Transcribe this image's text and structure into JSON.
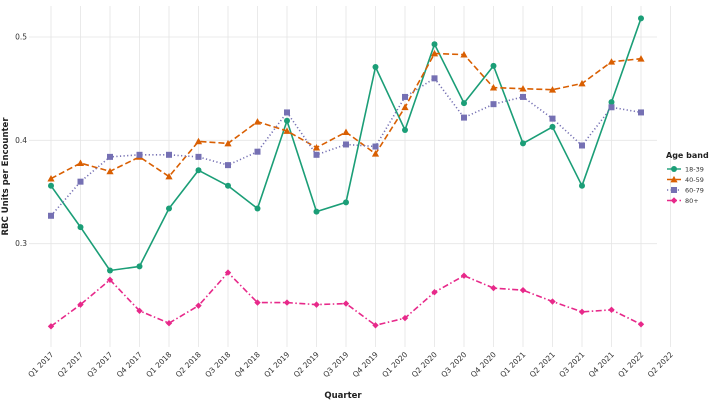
{
  "chart_data": {
    "type": "line",
    "title": "",
    "xlabel": "Quarter",
    "ylabel": "RBC Units per Encounter",
    "categories": [
      "Q1 2017",
      "Q2 2017",
      "Q3 2017",
      "Q4 2017",
      "Q1 2018",
      "Q2 2018",
      "Q3 2018",
      "Q4 2018",
      "Q1 2019",
      "Q2 2019",
      "Q3 2019",
      "Q4 2019",
      "Q1 2020",
      "Q2 2020",
      "Q3 2020",
      "Q4 2020",
      "Q1 2021",
      "Q2 2021",
      "Q3 2021",
      "Q4 2021",
      "Q1 2022",
      "Q2 2022"
    ],
    "ylim": [
      0.2,
      0.53
    ],
    "yticks": [
      0.3,
      0.4,
      0.5
    ],
    "ytick_labels": [
      "0.3",
      "0.4",
      "0.5"
    ],
    "grid": true,
    "legend_title": "Age band",
    "legend_position": "right",
    "series": [
      {
        "name": "18-39",
        "color": "#1b9e77",
        "marker": "circle",
        "dash": "solid",
        "values": [
          0.356,
          0.316,
          0.274,
          0.278,
          0.334,
          0.371,
          0.356,
          0.334,
          0.419,
          0.331,
          0.34,
          0.471,
          0.41,
          0.493,
          0.436,
          0.472,
          0.397,
          0.413,
          0.356,
          0.437,
          0.518,
          null
        ]
      },
      {
        "name": "40-59",
        "color": "#d95f02",
        "marker": "triangle",
        "dash": "dashed",
        "values": [
          0.363,
          0.378,
          0.37,
          0.384,
          0.365,
          0.399,
          0.397,
          0.418,
          0.409,
          0.393,
          0.408,
          0.387,
          0.432,
          0.484,
          0.483,
          0.451,
          0.45,
          0.449,
          0.455,
          0.476,
          0.479,
          null
        ]
      },
      {
        "name": "60-79",
        "color": "#7570b3",
        "marker": "square",
        "dash": "dotted",
        "values": [
          0.327,
          0.36,
          0.384,
          0.386,
          0.386,
          0.384,
          0.376,
          0.389,
          0.427,
          0.386,
          0.396,
          0.394,
          0.442,
          0.46,
          0.422,
          0.435,
          0.442,
          0.421,
          0.395,
          0.432,
          0.427,
          null
        ]
      },
      {
        "name": "80+",
        "color": "#e7298a",
        "marker": "diamond",
        "dash": "dashdot",
        "values": [
          0.22,
          0.241,
          0.265,
          0.235,
          0.223,
          0.24,
          0.272,
          0.243,
          0.243,
          0.241,
          0.242,
          0.221,
          0.228,
          0.253,
          0.269,
          0.257,
          0.255,
          0.244,
          0.234,
          0.236,
          0.222,
          null
        ]
      }
    ]
  }
}
